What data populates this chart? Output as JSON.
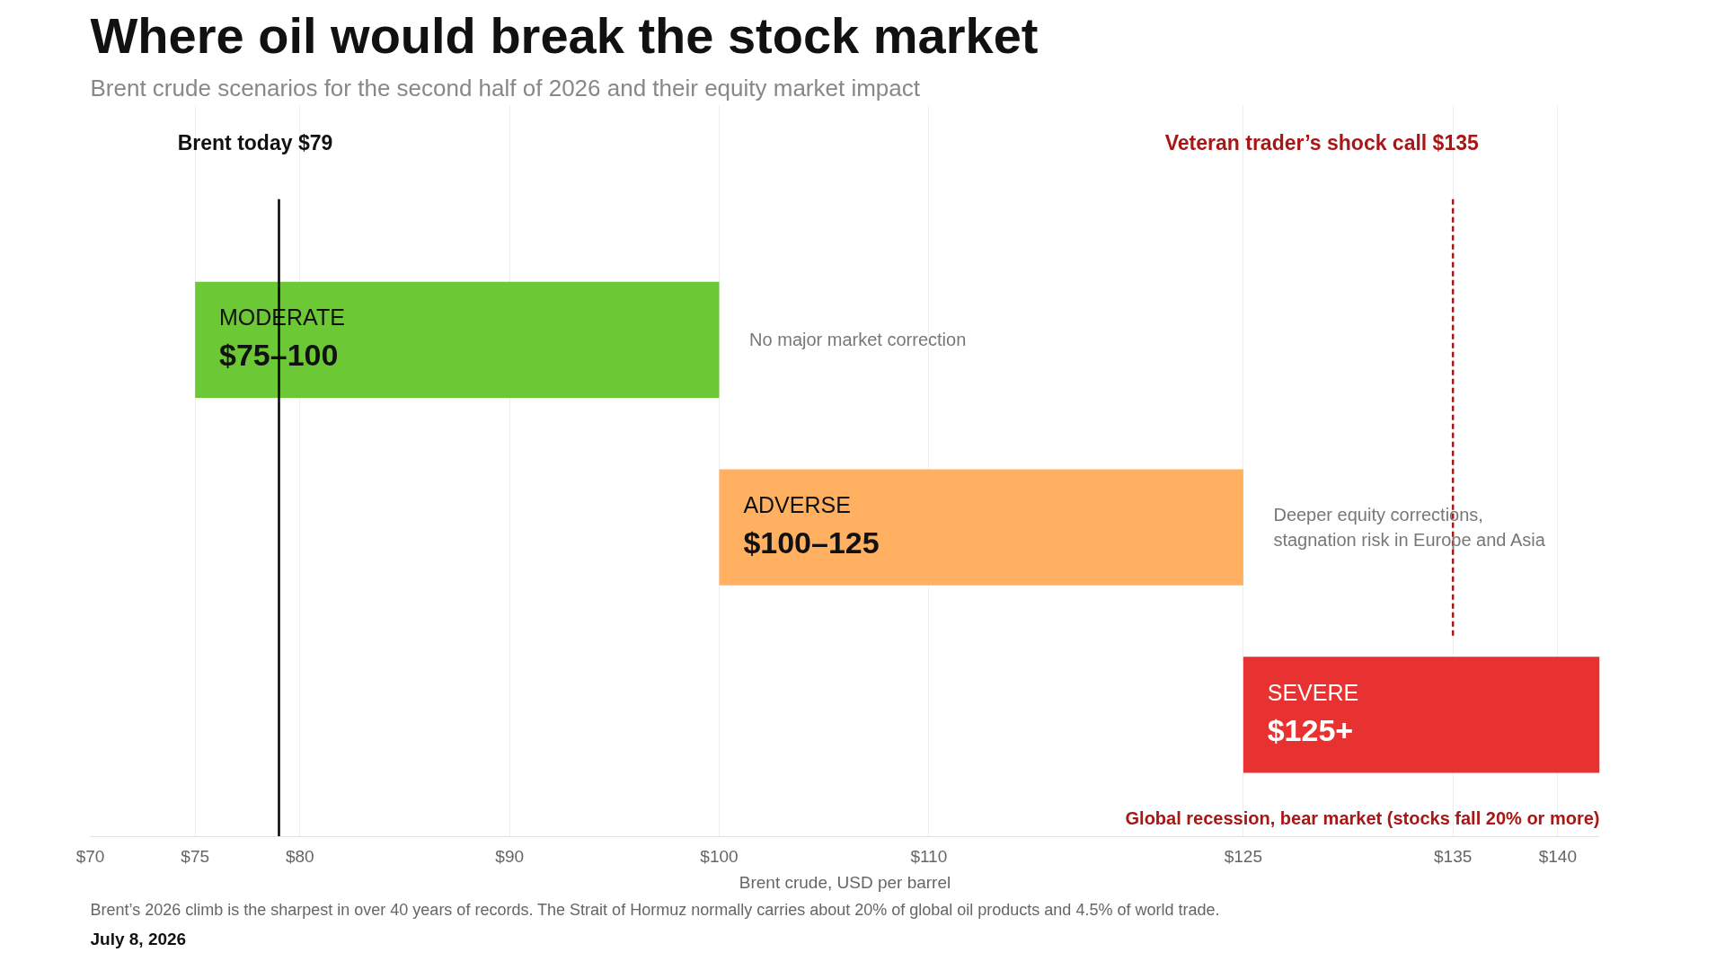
{
  "chart_data": {
    "type": "bar",
    "orientation": "horizontal",
    "title": "Where oil would break the stock market",
    "subtitle": "Brent crude scenarios for the second half of 2026 and their equity market impact",
    "xlabel": "Brent crude, USD per barrel",
    "categories": [
      "MODERATE",
      "ADVERSE",
      "SEVERE"
    ],
    "base": [
      75,
      100,
      125
    ],
    "values": [
      25,
      25,
      17
    ],
    "colors": [
      "#6cc935",
      "#ffb060",
      "#e83232"
    ],
    "value_labels": [
      "$75–100",
      "$100–125",
      "$125+"
    ],
    "xlim": [
      70,
      142
    ],
    "xticks": [
      {
        "value": 70,
        "label": "$70"
      },
      {
        "value": 75,
        "label": "$75"
      },
      {
        "value": 80,
        "label": "$80"
      },
      {
        "value": 90,
        "label": "$90"
      },
      {
        "value": 100,
        "label": "$100"
      },
      {
        "value": 110,
        "label": "$110"
      },
      {
        "value": 125,
        "label": "$125"
      },
      {
        "value": 135,
        "label": "$135"
      },
      {
        "value": 140,
        "label": "$140"
      }
    ],
    "grid": "x",
    "ref_lines": [
      {
        "axis": "x",
        "value": 79,
        "label": "Brent today  $79",
        "color": "#000000",
        "line_style": "solid"
      },
      {
        "axis": "x",
        "value": 135,
        "label": "Veteran trader’s shock call  $135",
        "color": "#a81616",
        "line_style": "dashed"
      }
    ],
    "annotations": [
      "No major market correction",
      "Deeper equity corrections,\nstagnation risk in Europe and Asia",
      "Global recession, bear market (stocks fall 20% or more)",
      "Brent’s 2026 climb is the sharpest in over 40 years of records. The Strait of Hormuz normally carries about 20% of global oil products and 4.5% of world trade.",
      "July 8, 2026"
    ]
  }
}
